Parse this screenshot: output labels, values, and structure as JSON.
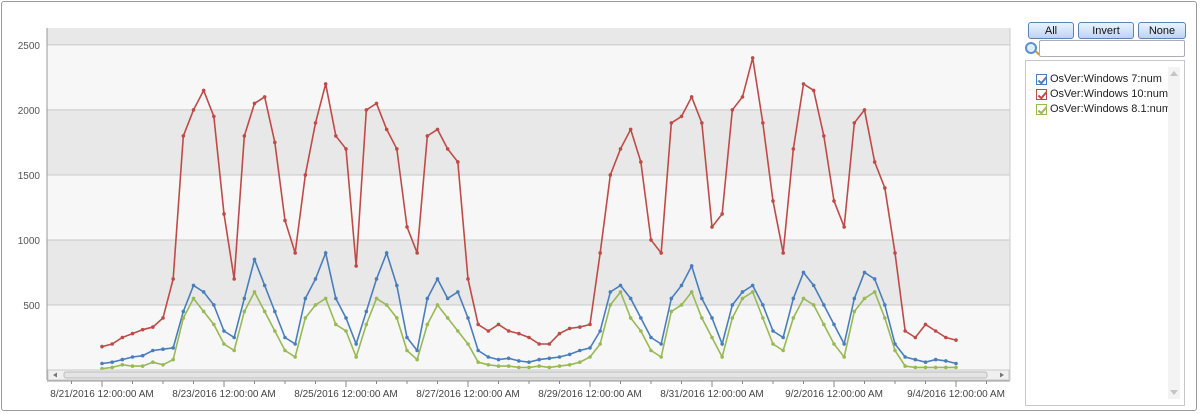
{
  "chart_data": {
    "type": "line",
    "title": "",
    "xlabel": "",
    "ylabel": "",
    "ylim": [
      0,
      2630
    ],
    "yticks": [
      500,
      1000,
      1500,
      2000,
      2500
    ],
    "ytick_labels": [
      "500",
      "1000",
      "1500",
      "2000",
      "2500"
    ],
    "x_start": "8/21/2016 00:00",
    "x_step_hours": 4,
    "xtick_labels": [
      "8/21/2016 12:00:00 AM",
      "8/23/2016 12:00:00 AM",
      "8/25/2016 12:00:00 AM",
      "8/27/2016 12:00:00 AM",
      "8/29/2016 12:00:00 AM",
      "8/31/2016 12:00:00 AM",
      "9/2/2016 12:00:00 AM",
      "9/4/2016 12:00:00 AM"
    ],
    "xtick_days": [
      0,
      2,
      4,
      6,
      8,
      10,
      12,
      14
    ],
    "grid": true,
    "legend": "right",
    "series": [
      {
        "name": "OsVer:Windows 7:num",
        "color": "#4a7ebb",
        "values": [
          50,
          60,
          80,
          100,
          110,
          150,
          160,
          170,
          450,
          650,
          600,
          500,
          300,
          250,
          550,
          850,
          650,
          450,
          250,
          200,
          550,
          700,
          900,
          550,
          400,
          200,
          450,
          700,
          900,
          650,
          250,
          150,
          550,
          700,
          550,
          600,
          400,
          150,
          100,
          80,
          90,
          70,
          60,
          80,
          90,
          100,
          120,
          150,
          170,
          300,
          600,
          650,
          550,
          400,
          250,
          200,
          550,
          650,
          800,
          550,
          400,
          200,
          500,
          600,
          650,
          500,
          300,
          250,
          550,
          750,
          650,
          500,
          350,
          200,
          550,
          750,
          700,
          500,
          200,
          100,
          80,
          60,
          80,
          70,
          50
        ]
      },
      {
        "name": "OsVer:Windows 10:num",
        "color": "#be4b48",
        "values": [
          180,
          200,
          250,
          280,
          310,
          330,
          400,
          700,
          1800,
          2000,
          2150,
          1950,
          1200,
          700,
          1800,
          2050,
          2100,
          1750,
          1150,
          900,
          1500,
          1900,
          2200,
          1800,
          1700,
          800,
          2000,
          2050,
          1850,
          1700,
          1100,
          900,
          1800,
          1850,
          1700,
          1600,
          700,
          350,
          300,
          350,
          300,
          280,
          250,
          200,
          200,
          280,
          320,
          330,
          350,
          900,
          1500,
          1700,
          1850,
          1600,
          1000,
          900,
          1900,
          1950,
          2100,
          1900,
          1100,
          1200,
          2000,
          2100,
          2400,
          1900,
          1300,
          900,
          1700,
          2200,
          2150,
          1800,
          1300,
          1100,
          1900,
          2000,
          1600,
          1400,
          900,
          300,
          250,
          350,
          300,
          250,
          230
        ]
      },
      {
        "name": "OsVer:Windows 8.1:num",
        "color": "#98b954",
        "values": [
          10,
          20,
          40,
          30,
          30,
          60,
          40,
          80,
          400,
          550,
          450,
          350,
          200,
          150,
          450,
          600,
          450,
          300,
          150,
          100,
          400,
          500,
          550,
          350,
          300,
          100,
          350,
          550,
          500,
          400,
          150,
          80,
          350,
          500,
          400,
          300,
          200,
          60,
          40,
          30,
          30,
          20,
          20,
          30,
          20,
          30,
          40,
          60,
          100,
          200,
          500,
          600,
          400,
          300,
          150,
          100,
          450,
          500,
          600,
          400,
          250,
          100,
          400,
          550,
          600,
          400,
          200,
          150,
          400,
          550,
          500,
          350,
          200,
          100,
          450,
          550,
          600,
          400,
          150,
          30,
          20,
          20,
          20,
          20,
          20
        ]
      }
    ]
  },
  "panel": {
    "all_label": "All",
    "invert_label": "Invert",
    "none_label": "None",
    "search_value": "",
    "items": [
      {
        "label": "OsVer:Windows 7:num",
        "checked": true
      },
      {
        "label": "OsVer:Windows 10:num",
        "checked": true
      },
      {
        "label": "OsVer:Windows 8.1:num",
        "checked": true
      }
    ]
  }
}
